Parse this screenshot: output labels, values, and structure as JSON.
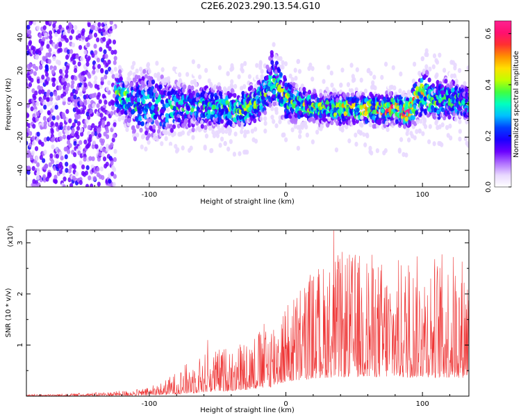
{
  "figure_title": "C2E6.2023.290.13.54.G10",
  "colors": {
    "snr_line": "#ee3333",
    "axis": "#000000"
  },
  "colorscale": [
    "#ffffff",
    "#e8d8ff",
    "#b070ff",
    "#6a00ff",
    "#1a00ff",
    "#0040ff",
    "#00c0ff",
    "#00ffc0",
    "#40ff40",
    "#c0ff00",
    "#ffe000",
    "#ff9000",
    "#ff3030",
    "#ff1070",
    "#ff2090"
  ],
  "chart_data": [
    {
      "type": "heatmap",
      "title": "",
      "xlabel": "Height of straight line (km)",
      "ylabel": "Frequency (Hz)",
      "xlim": [
        -190,
        134
      ],
      "ylim": [
        -50,
        50
      ],
      "xticks": [
        -100,
        0,
        100
      ],
      "yticks": [
        -40,
        -20,
        0,
        20,
        40
      ],
      "colorbar": {
        "label": "Normalized spectral amplitude",
        "range": [
          0,
          0.65
        ],
        "ticks": [
          0.0,
          0.2,
          0.4,
          0.6
        ]
      },
      "ridge": {
        "x": [
          -140,
          -130,
          -120,
          -110,
          -100,
          -90,
          -80,
          -70,
          -60,
          -50,
          -40,
          -30,
          -20,
          -15,
          -10,
          0,
          10,
          20,
          30,
          40,
          50,
          60,
          70,
          80,
          90,
          95,
          100,
          110,
          120,
          134
        ],
        "center": [
          3,
          5,
          5,
          -2,
          0,
          -3,
          -2,
          -2,
          -1,
          -2,
          -4,
          -3,
          2,
          5,
          16,
          3,
          0,
          -2,
          -3,
          -3,
          -3,
          -3,
          -4,
          -2,
          -5,
          2,
          6,
          2,
          3,
          0
        ],
        "width": [
          6,
          8,
          9,
          12,
          14,
          12,
          10,
          9,
          9,
          8,
          7,
          7,
          8,
          9,
          12,
          8,
          7,
          6,
          6,
          6,
          6,
          6,
          6,
          6,
          6,
          8,
          9,
          8,
          8,
          7
        ],
        "peak": [
          0.25,
          0.35,
          0.35,
          0.3,
          0.28,
          0.3,
          0.3,
          0.28,
          0.3,
          0.3,
          0.38,
          0.45,
          0.35,
          0.35,
          0.3,
          0.4,
          0.38,
          0.38,
          0.4,
          0.4,
          0.42,
          0.45,
          0.45,
          0.5,
          0.55,
          0.45,
          0.4,
          0.38,
          0.35,
          0.3
        ]
      }
    },
    {
      "type": "line",
      "title": "",
      "xlabel": "Height of straight line (km)",
      "ylabel": "SNR (10 * v/v)",
      "yscale_label": "(x10",
      "yscale_exp": "4",
      "xlim": [
        -190,
        134
      ],
      "ylim": [
        0,
        32500
      ],
      "xticks": [
        -100,
        0,
        100
      ],
      "yticks": [
        10000,
        20000,
        30000
      ],
      "ytick_labels": [
        "1",
        "2",
        "3"
      ],
      "envelope": {
        "x": [
          -190,
          -160,
          -130,
          -110,
          -100,
          -90,
          -80,
          -70,
          -60,
          -50,
          -40,
          -30,
          -20,
          -10,
          -5,
          0,
          10,
          20,
          30,
          40,
          50,
          60,
          70,
          80,
          90,
          100,
          110,
          120,
          134
        ],
        "base": [
          100,
          200,
          300,
          400,
          500,
          800,
          1200,
          1800,
          2500,
          3000,
          3500,
          4000,
          5000,
          6000,
          8000,
          9000,
          10000,
          11500,
          12000,
          12500,
          12500,
          12500,
          12500,
          12500,
          12000,
          12500,
          12000,
          12000,
          12000
        ],
        "amp": [
          200,
          300,
          600,
          900,
          1200,
          2000,
          3500,
          5000,
          6000,
          6500,
          7000,
          8000,
          9000,
          11000,
          12000,
          12000,
          15000,
          17000,
          18000,
          19000,
          19000,
          19000,
          18000,
          18000,
          18000,
          19000,
          19000,
          19000,
          19000
        ]
      }
    }
  ]
}
